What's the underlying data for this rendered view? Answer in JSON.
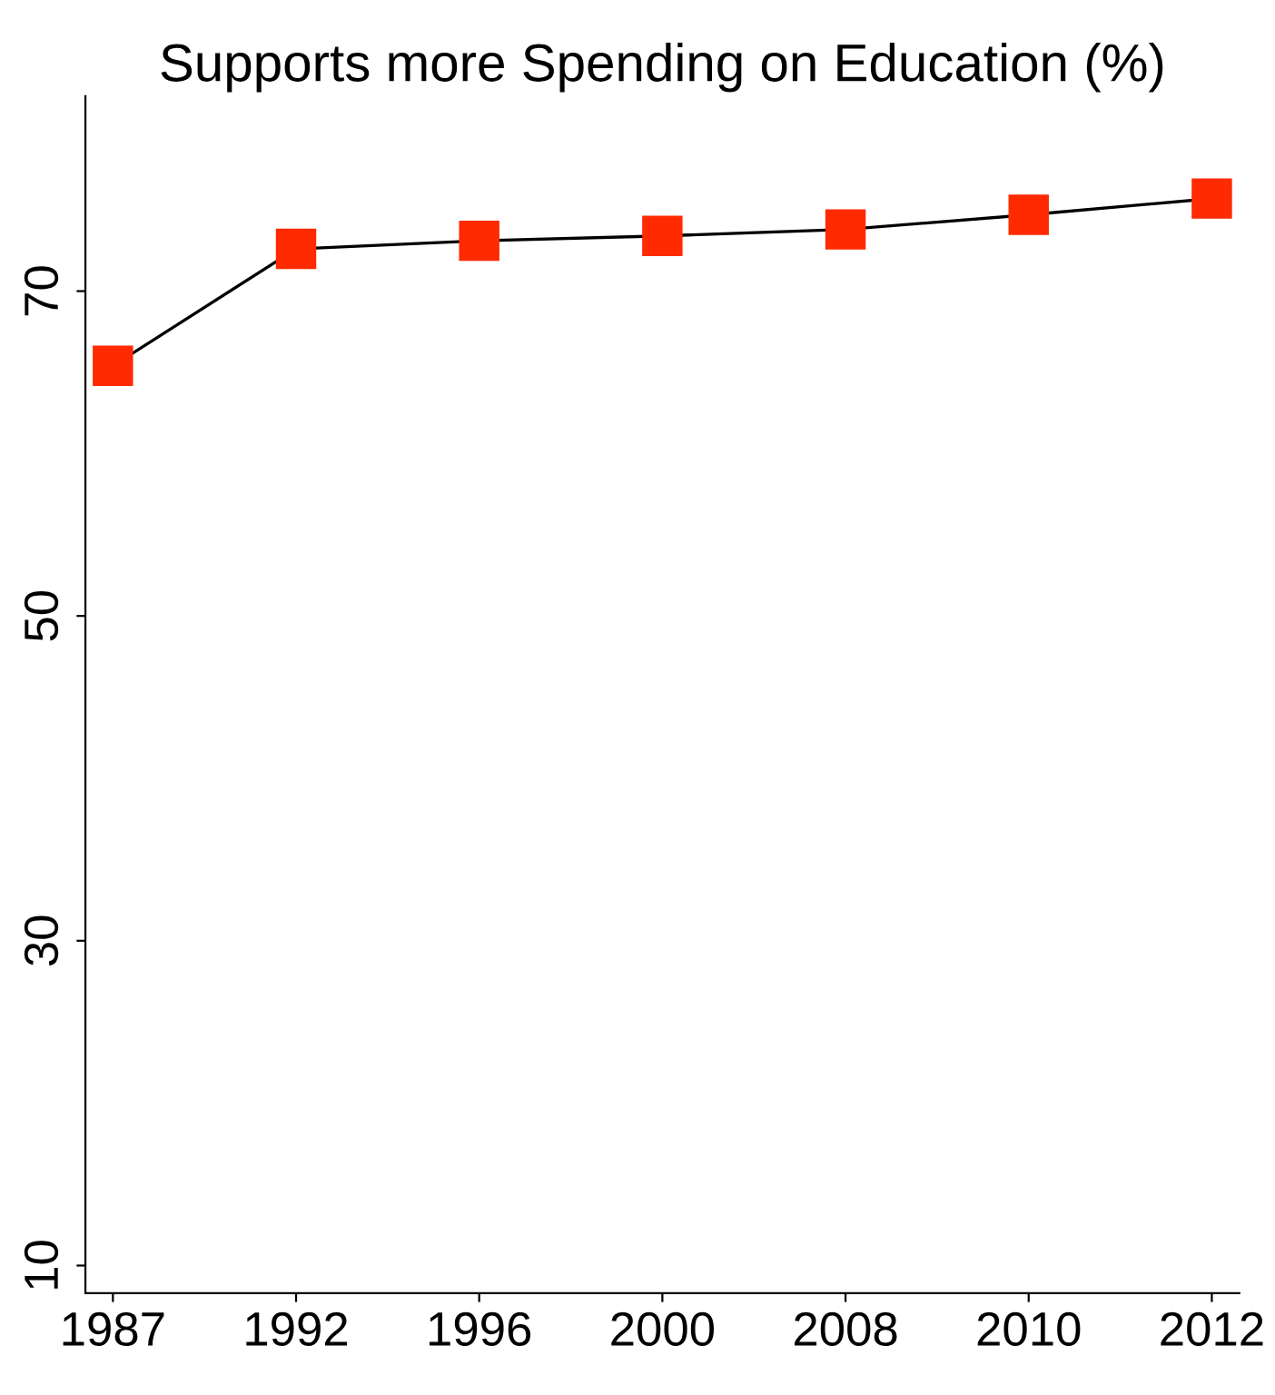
{
  "chart_data": {
    "type": "line",
    "title": "Supports more Spending on Education (%)",
    "categories": [
      "1987",
      "1992",
      "1996",
      "2000",
      "2008",
      "2010",
      "2012"
    ],
    "series": [
      {
        "color": "#ff2a00",
        "values": [
          65.4,
          72.6,
          73.1,
          73.4,
          73.8,
          74.7,
          75.7
        ]
      }
    ],
    "ylim": [
      8.3,
      82
    ],
    "yticks": [
      10,
      30,
      50,
      70
    ],
    "grid": false,
    "legend": false,
    "marker": "square",
    "line_style": "solid"
  }
}
